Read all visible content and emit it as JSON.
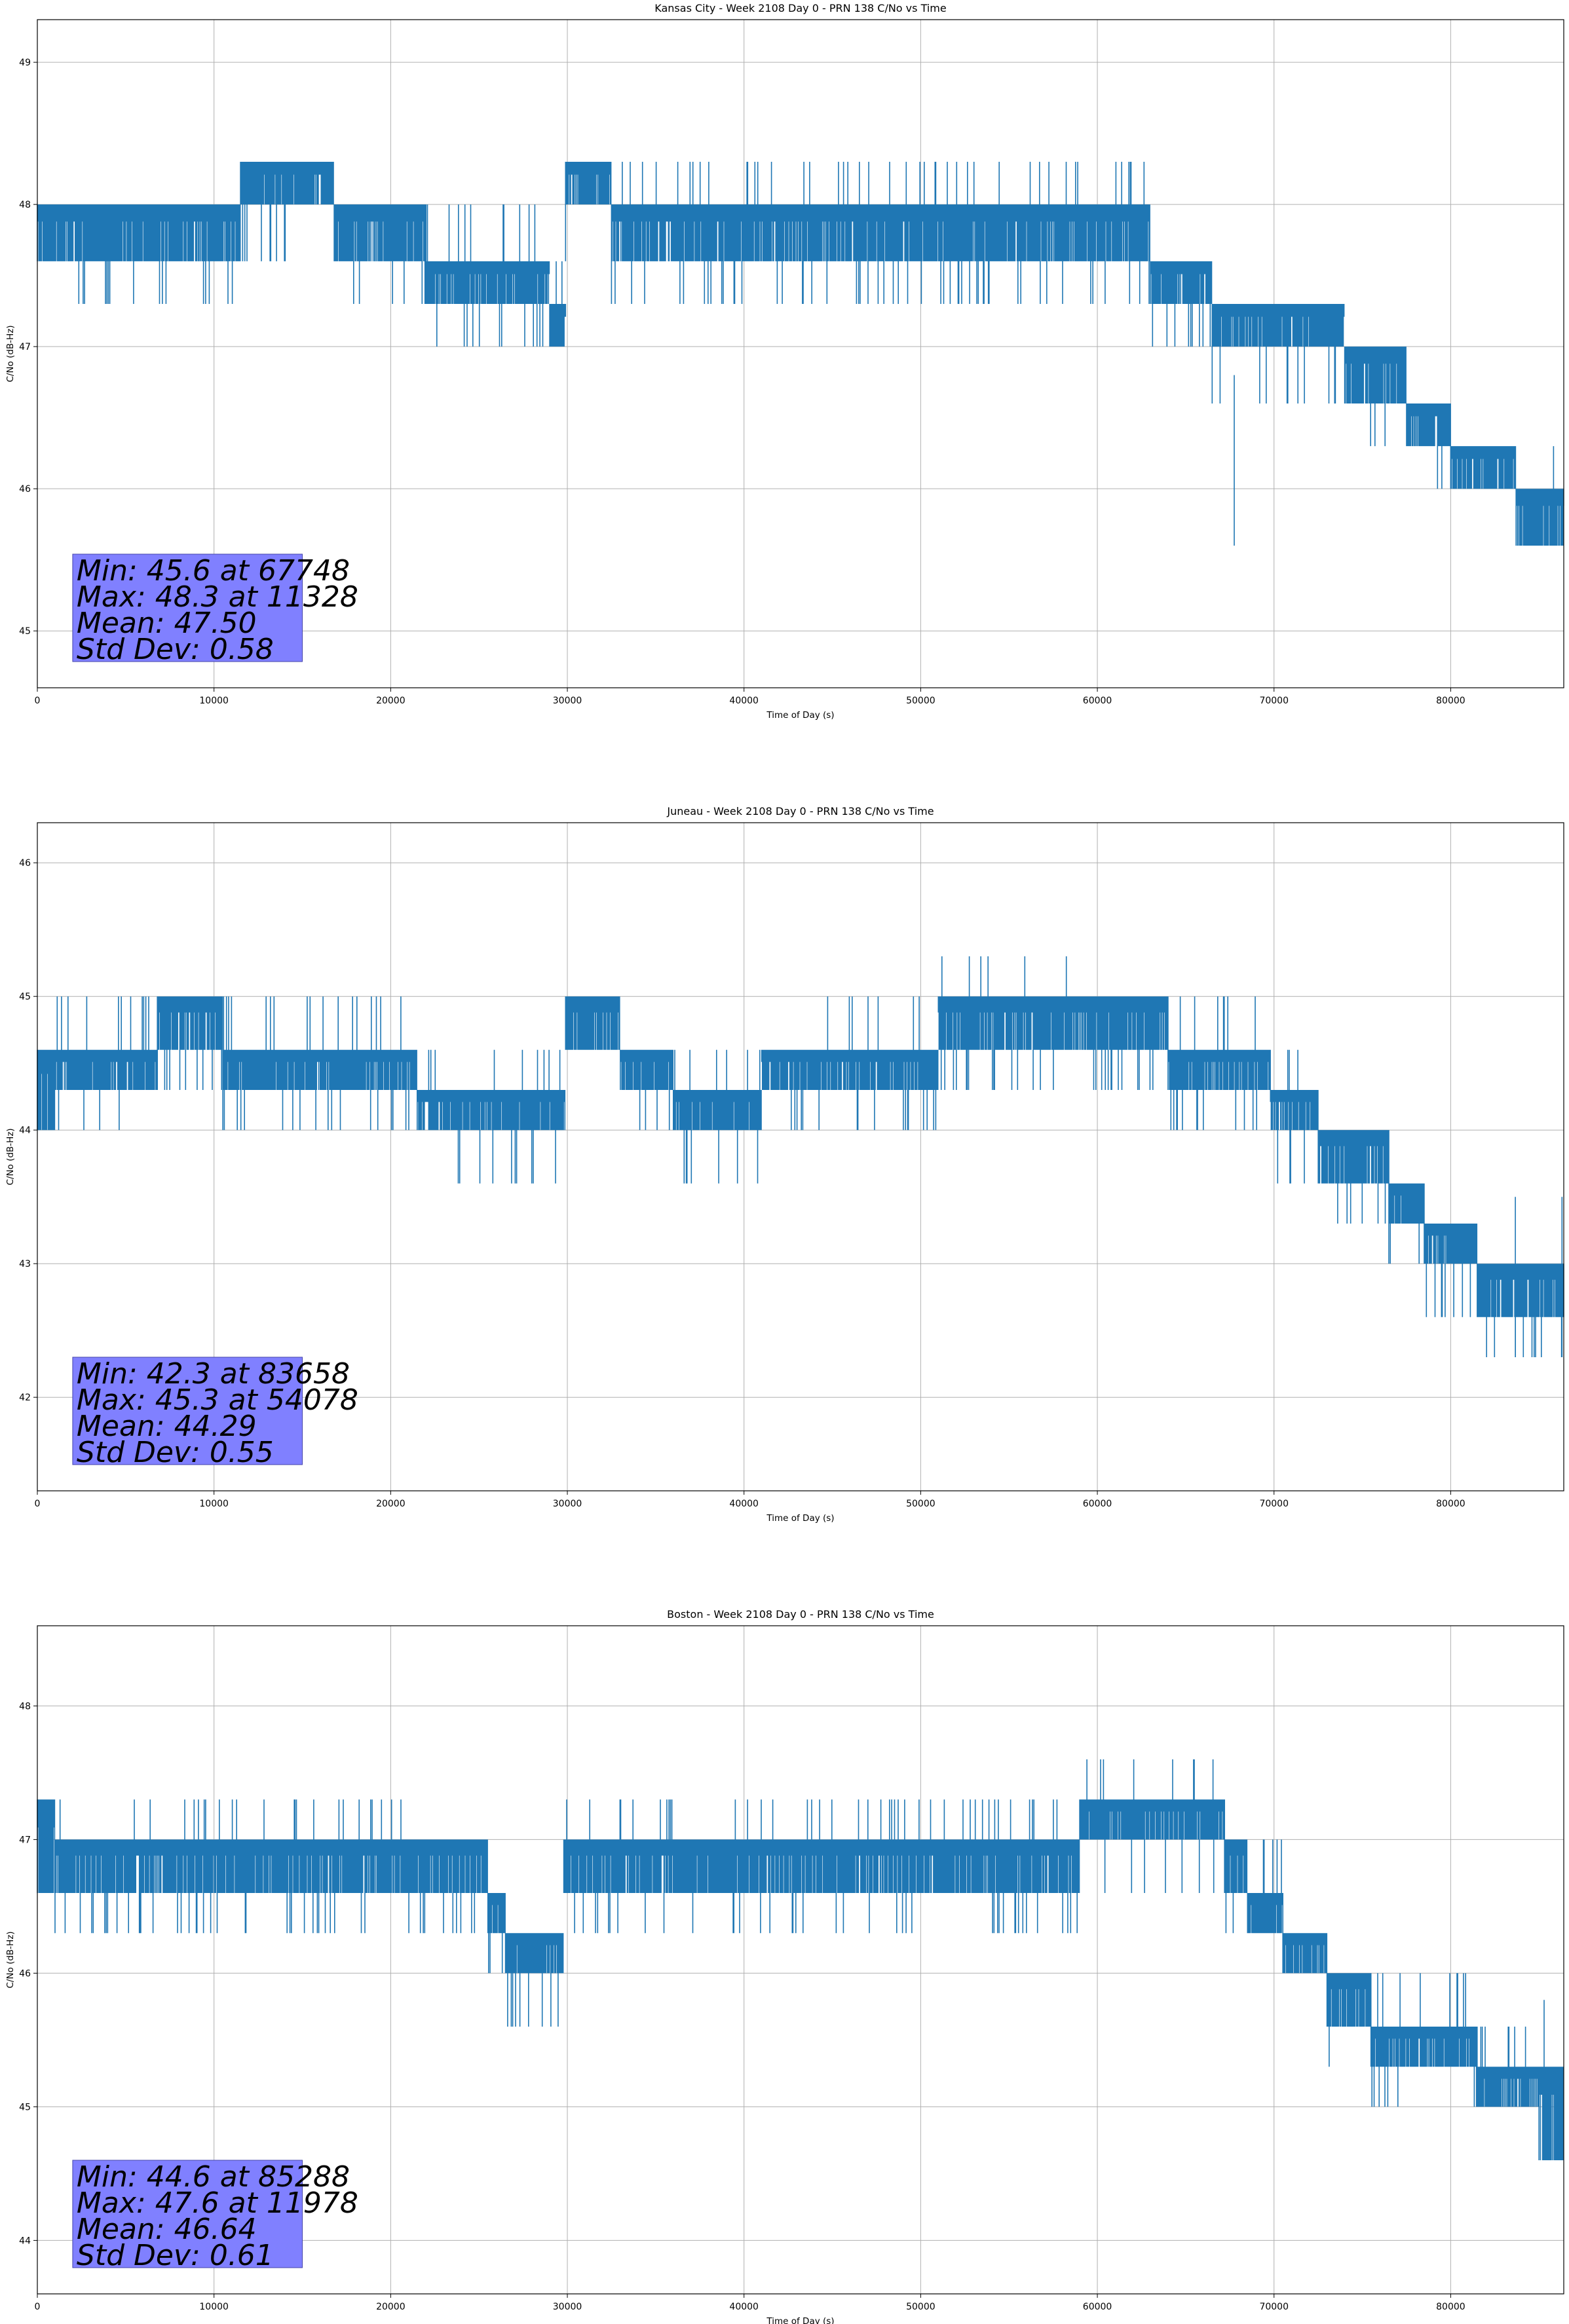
{
  "chart_data": [
    {
      "type": "line",
      "title": "Kansas City - Week 2108 Day 0 - PRN 138 C/No vs Time",
      "xlabel": "Time of Day (s)",
      "ylabel": "C/No (dB-Hz)",
      "xlim": [
        0,
        86400
      ],
      "ylim": [
        44.6,
        49.3
      ],
      "xticks": [
        0,
        10000,
        20000,
        30000,
        40000,
        50000,
        60000,
        70000,
        80000
      ],
      "yticks": [
        45,
        46,
        47,
        48,
        49
      ],
      "grid": true,
      "color": "#1f77b4",
      "stats": [
        "Min: 45.6 at 67748",
        "Max: 48.3 at 11328",
        "Mean: 47.50",
        "Std Dev: 0.58"
      ],
      "segments": [
        {
          "x": [
            0,
            1000
          ],
          "band": [
            47.6,
            48.0
          ],
          "spike_lo": 47.3,
          "spike_hi": 48.0
        },
        {
          "x": [
            1000,
            11500
          ],
          "band": [
            47.6,
            48.0
          ],
          "spike_lo": 47.3,
          "spike_hi": 48.0
        },
        {
          "x": [
            11500,
            16800
          ],
          "band": [
            48.0,
            48.3
          ],
          "spike_lo": 47.6,
          "spike_hi": 48.3
        },
        {
          "x": [
            16800,
            22000
          ],
          "band": [
            47.6,
            48.0
          ],
          "spike_lo": 47.3,
          "spike_hi": 48.0
        },
        {
          "x": [
            22000,
            29000
          ],
          "band": [
            47.3,
            47.6
          ],
          "spike_lo": 47.0,
          "spike_hi": 48.0
        },
        {
          "x": [
            29000,
            29900
          ],
          "band": [
            47.0,
            47.3
          ],
          "spike_lo": 47.0,
          "spike_hi": 47.6
        },
        {
          "x": [
            29900,
            32500
          ],
          "band": [
            48.0,
            48.3
          ],
          "spike_lo": 47.6,
          "spike_hi": 48.3
        },
        {
          "x": [
            32500,
            63000
          ],
          "band": [
            47.6,
            48.0
          ],
          "spike_lo": 47.3,
          "spike_hi": 48.3
        },
        {
          "x": [
            63000,
            66500
          ],
          "band": [
            47.3,
            47.6
          ],
          "spike_lo": 47.0,
          "spike_hi": 47.6
        },
        {
          "x": [
            66500,
            74000
          ],
          "band": [
            47.0,
            47.3
          ],
          "spike_lo": 46.6,
          "spike_hi": 47.3
        },
        {
          "x": [
            74000,
            77500
          ],
          "band": [
            46.6,
            47.0
          ],
          "spike_lo": 46.3,
          "spike_hi": 47.0
        },
        {
          "x": [
            77500,
            80000
          ],
          "band": [
            46.3,
            46.6
          ],
          "spike_lo": 46.0,
          "spike_hi": 46.6
        },
        {
          "x": [
            80000,
            83700
          ],
          "band": [
            46.0,
            46.3
          ],
          "spike_lo": 46.0,
          "spike_hi": 46.3
        },
        {
          "x": [
            83700,
            86400
          ],
          "band": [
            45.6,
            46.0
          ],
          "spike_lo": 45.6,
          "spike_hi": 46.3
        }
      ],
      "dips": [
        [
          67748,
          45.6
        ]
      ]
    },
    {
      "type": "line",
      "title": "Juneau - Week 2108 Day 0 - PRN 138 C/No vs Time",
      "xlabel": "Time of Day (s)",
      "ylabel": "C/No (dB-Hz)",
      "xlim": [
        0,
        86400
      ],
      "ylim": [
        41.3,
        46.3
      ],
      "xticks": [
        0,
        10000,
        20000,
        30000,
        40000,
        50000,
        60000,
        70000,
        80000
      ],
      "yticks": [
        42,
        43,
        44,
        45,
        46
      ],
      "grid": true,
      "color": "#1f77b4",
      "stats": [
        "Min: 42.3 at 83658",
        "Max: 45.3 at 54078",
        "Mean: 44.29",
        "Std Dev: 0.55"
      ],
      "segments": [
        {
          "x": [
            0,
            1000
          ],
          "band": [
            44.0,
            44.6
          ],
          "spike_lo": 44.0,
          "spike_hi": 44.6
        },
        {
          "x": [
            1000,
            6800
          ],
          "band": [
            44.3,
            44.6
          ],
          "spike_lo": 44.0,
          "spike_hi": 45.0
        },
        {
          "x": [
            6800,
            10500
          ],
          "band": [
            44.6,
            45.0
          ],
          "spike_lo": 44.3,
          "spike_hi": 45.0
        },
        {
          "x": [
            10500,
            21500
          ],
          "band": [
            44.3,
            44.6
          ],
          "spike_lo": 44.0,
          "spike_hi": 45.0
        },
        {
          "x": [
            21500,
            29900
          ],
          "band": [
            44.0,
            44.3
          ],
          "spike_lo": 43.6,
          "spike_hi": 44.6
        },
        {
          "x": [
            29900,
            33000
          ],
          "band": [
            44.6,
            45.0
          ],
          "spike_lo": 44.3,
          "spike_hi": 45.0
        },
        {
          "x": [
            33000,
            36000
          ],
          "band": [
            44.3,
            44.6
          ],
          "spike_lo": 44.0,
          "spike_hi": 44.6
        },
        {
          "x": [
            36000,
            41000
          ],
          "band": [
            44.0,
            44.3
          ],
          "spike_lo": 43.6,
          "spike_hi": 44.6
        },
        {
          "x": [
            41000,
            44000
          ],
          "band": [
            44.3,
            44.6
          ],
          "spike_lo": 44.0,
          "spike_hi": 44.6
        },
        {
          "x": [
            44000,
            51000
          ],
          "band": [
            44.3,
            44.6
          ],
          "spike_lo": 44.0,
          "spike_hi": 45.0
        },
        {
          "x": [
            51000,
            56000
          ],
          "band": [
            44.6,
            45.0
          ],
          "spike_lo": 44.3,
          "spike_hi": 45.3
        },
        {
          "x": [
            56000,
            60000
          ],
          "band": [
            44.6,
            45.0
          ],
          "spike_lo": 44.3,
          "spike_hi": 45.3
        },
        {
          "x": [
            60000,
            64000
          ],
          "band": [
            44.6,
            45.0
          ],
          "spike_lo": 44.3,
          "spike_hi": 45.0
        },
        {
          "x": [
            64000,
            69800
          ],
          "band": [
            44.3,
            44.6
          ],
          "spike_lo": 44.0,
          "spike_hi": 45.0
        },
        {
          "x": [
            69800,
            72500
          ],
          "band": [
            44.0,
            44.3
          ],
          "spike_lo": 43.6,
          "spike_hi": 44.6
        },
        {
          "x": [
            72500,
            76500
          ],
          "band": [
            43.6,
            44.0
          ],
          "spike_lo": 43.3,
          "spike_hi": 44.0
        },
        {
          "x": [
            76500,
            78500
          ],
          "band": [
            43.3,
            43.6
          ],
          "spike_lo": 43.0,
          "spike_hi": 43.6
        },
        {
          "x": [
            78500,
            81500
          ],
          "band": [
            43.0,
            43.3
          ],
          "spike_lo": 42.6,
          "spike_hi": 43.3
        },
        {
          "x": [
            81500,
            86400
          ],
          "band": [
            42.6,
            43.0
          ],
          "spike_lo": 42.3,
          "spike_hi": 43.0
        }
      ],
      "dips": [
        [
          83658,
          42.3
        ],
        [
          86300,
          42.3
        ]
      ]
    },
    {
      "type": "line",
      "title": "Boston - Week 2108 Day 0 - PRN 138 C/No vs Time",
      "xlabel": "Time of Day (s)",
      "ylabel": "C/No (dB-Hz)",
      "xlim": [
        0,
        86400
      ],
      "ylim": [
        43.6,
        48.6
      ],
      "xticks": [
        0,
        10000,
        20000,
        30000,
        40000,
        50000,
        60000,
        70000,
        80000
      ],
      "yticks": [
        44,
        45,
        46,
        47,
        48
      ],
      "grid": true,
      "color": "#1f77b4",
      "stats": [
        "Min: 44.6 at 85288",
        "Max: 47.6 at 11978",
        "Mean: 46.64",
        "Std Dev: 0.61"
      ],
      "segments": [
        {
          "x": [
            0,
            1000
          ],
          "band": [
            46.6,
            47.3
          ],
          "spike_lo": 46.6,
          "spike_hi": 47.3
        },
        {
          "x": [
            1000,
            22500
          ],
          "band": [
            46.6,
            47.0
          ],
          "spike_lo": 46.3,
          "spike_hi": 47.3
        },
        {
          "x": [
            22500,
            25500
          ],
          "band": [
            46.6,
            47.0
          ],
          "spike_lo": 46.3,
          "spike_hi": 47.0
        },
        {
          "x": [
            25500,
            26500
          ],
          "band": [
            46.3,
            46.6
          ],
          "spike_lo": 46.0,
          "spike_hi": 46.6
        },
        {
          "x": [
            26500,
            29800
          ],
          "band": [
            46.0,
            46.3
          ],
          "spike_lo": 45.6,
          "spike_hi": 46.3
        },
        {
          "x": [
            29800,
            56000
          ],
          "band": [
            46.6,
            47.0
          ],
          "spike_lo": 46.3,
          "spike_hi": 47.3
        },
        {
          "x": [
            56000,
            59000
          ],
          "band": [
            46.6,
            47.0
          ],
          "spike_lo": 46.3,
          "spike_hi": 47.3
        },
        {
          "x": [
            59000,
            67200
          ],
          "band": [
            47.0,
            47.3
          ],
          "spike_lo": 46.6,
          "spike_hi": 47.6
        },
        {
          "x": [
            67200,
            68500
          ],
          "band": [
            46.6,
            47.0
          ],
          "spike_lo": 46.3,
          "spike_hi": 47.0
        },
        {
          "x": [
            68500,
            70500
          ],
          "band": [
            46.3,
            46.6
          ],
          "spike_lo": 46.3,
          "spike_hi": 47.0
        },
        {
          "x": [
            70500,
            73000
          ],
          "band": [
            46.0,
            46.3
          ],
          "spike_lo": 46.0,
          "spike_hi": 46.3
        },
        {
          "x": [
            73000,
            75500
          ],
          "band": [
            45.6,
            46.0
          ],
          "spike_lo": 45.3,
          "spike_hi": 46.0
        },
        {
          "x": [
            75500,
            81500
          ],
          "band": [
            45.3,
            45.6
          ],
          "spike_lo": 45.0,
          "spike_hi": 46.0
        },
        {
          "x": [
            81500,
            85000
          ],
          "band": [
            45.0,
            45.3
          ],
          "spike_lo": 45.0,
          "spike_hi": 45.6
        },
        {
          "x": [
            85000,
            86400
          ],
          "band": [
            44.6,
            45.3
          ],
          "spike_lo": 44.6,
          "spike_hi": 45.3
        }
      ],
      "dips": [
        [
          85288,
          44.6
        ]
      ]
    }
  ]
}
